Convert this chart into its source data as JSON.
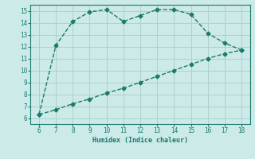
{
  "upper_x": [
    6,
    7,
    8,
    9,
    10,
    11,
    12,
    13,
    14,
    15,
    16,
    17,
    18
  ],
  "upper_y": [
    6.3,
    12.1,
    14.1,
    14.9,
    15.1,
    14.1,
    14.6,
    15.1,
    15.1,
    14.7,
    13.1,
    12.3,
    11.7
  ],
  "lower_x": [
    6,
    7,
    8,
    9,
    10,
    11,
    12,
    13,
    14,
    15,
    16,
    17,
    18
  ],
  "lower_y": [
    6.3,
    6.7,
    7.2,
    7.6,
    8.1,
    8.5,
    9.0,
    9.5,
    10.0,
    10.5,
    11.0,
    11.4,
    11.7
  ],
  "line_color": "#1a7a6e",
  "bg_color": "#cceae7",
  "grid_color": "#b0d0cc",
  "xlabel": "Humidex (Indice chaleur)",
  "xlim": [
    5.5,
    18.5
  ],
  "ylim": [
    5.5,
    15.5
  ],
  "xticks": [
    6,
    7,
    8,
    9,
    10,
    11,
    12,
    13,
    14,
    15,
    16,
    17,
    18
  ],
  "yticks": [
    6,
    7,
    8,
    9,
    10,
    11,
    12,
    13,
    14,
    15
  ],
  "marker": "D",
  "marker_size": 2.5,
  "line_width": 1.0
}
